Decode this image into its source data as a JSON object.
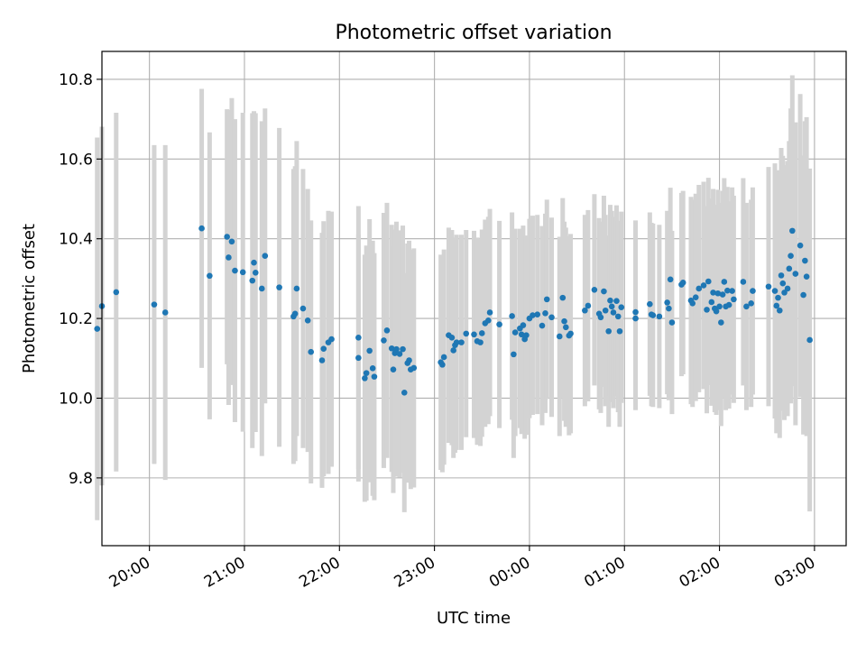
{
  "chart_data": {
    "type": "scatter",
    "title": "Photometric offset variation",
    "xlabel": "UTC time",
    "ylabel": "Photometric offset",
    "x_axis": {
      "type": "time",
      "range": [
        "19:30",
        "03:20"
      ],
      "ticks": [
        "20:00",
        "21:00",
        "22:00",
        "23:00",
        "00:00",
        "01:00",
        "02:00",
        "03:00"
      ]
    },
    "y_axis": {
      "range": [
        9.63,
        10.87
      ],
      "ticks": [
        "9.8",
        "10.0",
        "10.2",
        "10.4",
        "10.6",
        "10.8"
      ]
    },
    "grid": true,
    "colors": {
      "points": "#1f77b4",
      "errorbars": "#d3d3d3",
      "grid": "#b0b0b0"
    },
    "series": [
      {
        "points": [
          {
            "t": "19:27",
            "y": 10.174,
            "err": 0.48
          },
          {
            "t": "19:30",
            "y": 10.231,
            "err": 0.45
          },
          {
            "t": "19:39",
            "y": 10.266,
            "err": 0.45
          },
          {
            "t": "20:03",
            "y": 10.235,
            "err": 0.4
          },
          {
            "t": "20:10",
            "y": 10.215,
            "err": 0.42
          },
          {
            "t": "20:33",
            "y": 10.426,
            "err": 0.35
          },
          {
            "t": "20:38",
            "y": 10.307,
            "err": 0.36
          },
          {
            "t": "20:49",
            "y": 10.405,
            "err": 0.32
          },
          {
            "t": "20:50",
            "y": 10.353,
            "err": 0.37
          },
          {
            "t": "20:52",
            "y": 10.393,
            "err": 0.36
          },
          {
            "t": "20:54",
            "y": 10.32,
            "err": 0.38
          },
          {
            "t": "20:59",
            "y": 10.316,
            "err": 0.4
          },
          {
            "t": "21:05",
            "y": 10.295,
            "err": 0.42
          },
          {
            "t": "21:06",
            "y": 10.34,
            "err": 0.38
          },
          {
            "t": "21:07",
            "y": 10.315,
            "err": 0.4
          },
          {
            "t": "21:11",
            "y": 10.275,
            "err": 0.42
          },
          {
            "t": "21:13",
            "y": 10.357,
            "err": 0.37
          },
          {
            "t": "21:22",
            "y": 10.278,
            "err": 0.4
          },
          {
            "t": "21:31",
            "y": 10.205,
            "err": 0.37
          },
          {
            "t": "21:32",
            "y": 10.212,
            "err": 0.37
          },
          {
            "t": "21:33",
            "y": 10.275,
            "err": 0.37
          },
          {
            "t": "21:37",
            "y": 10.225,
            "err": 0.35
          },
          {
            "t": "21:40",
            "y": 10.195,
            "err": 0.33
          },
          {
            "t": "21:42",
            "y": 10.116,
            "err": 0.33
          },
          {
            "t": "21:49",
            "y": 10.095,
            "err": 0.32
          },
          {
            "t": "21:50",
            "y": 10.124,
            "err": 0.32
          },
          {
            "t": "21:53",
            "y": 10.14,
            "err": 0.33
          },
          {
            "t": "21:55",
            "y": 10.148,
            "err": 0.32
          },
          {
            "t": "22:12",
            "y": 10.152,
            "err": 0.33
          },
          {
            "t": "22:12",
            "y": 10.101,
            "err": 0.31
          },
          {
            "t": "22:16",
            "y": 10.05,
            "err": 0.31
          },
          {
            "t": "22:17",
            "y": 10.063,
            "err": 0.32
          },
          {
            "t": "22:19",
            "y": 10.119,
            "err": 0.33
          },
          {
            "t": "22:22",
            "y": 10.054,
            "err": 0.31
          },
          {
            "t": "22:21",
            "y": 10.075,
            "err": 0.32
          },
          {
            "t": "22:28",
            "y": 10.145,
            "err": 0.32
          },
          {
            "t": "22:30",
            "y": 10.17,
            "err": 0.32
          },
          {
            "t": "22:33",
            "y": 10.125,
            "err": 0.31
          },
          {
            "t": "22:34",
            "y": 10.072,
            "err": 0.31
          },
          {
            "t": "22:35",
            "y": 10.113,
            "err": 0.31
          },
          {
            "t": "22:36",
            "y": 10.123,
            "err": 0.32
          },
          {
            "t": "22:38",
            "y": 10.111,
            "err": 0.31
          },
          {
            "t": "22:40",
            "y": 10.123,
            "err": 0.31
          },
          {
            "t": "22:41",
            "y": 10.014,
            "err": 0.3
          },
          {
            "t": "22:43",
            "y": 10.088,
            "err": 0.3
          },
          {
            "t": "22:44",
            "y": 10.095,
            "err": 0.3
          },
          {
            "t": "22:45",
            "y": 10.072,
            "err": 0.3
          },
          {
            "t": "22:47",
            "y": 10.076,
            "err": 0.3
          },
          {
            "t": "23:04",
            "y": 10.09,
            "err": 0.27
          },
          {
            "t": "23:05",
            "y": 10.084,
            "err": 0.27
          },
          {
            "t": "23:06",
            "y": 10.103,
            "err": 0.27
          },
          {
            "t": "23:09",
            "y": 10.158,
            "err": 0.27
          },
          {
            "t": "23:11",
            "y": 10.152,
            "err": 0.27
          },
          {
            "t": "23:12",
            "y": 10.12,
            "err": 0.27
          },
          {
            "t": "23:13",
            "y": 10.133,
            "err": 0.27
          },
          {
            "t": "23:14",
            "y": 10.14,
            "err": 0.27
          },
          {
            "t": "23:17",
            "y": 10.14,
            "err": 0.27
          },
          {
            "t": "23:20",
            "y": 10.162,
            "err": 0.26
          },
          {
            "t": "23:25",
            "y": 10.16,
            "err": 0.26
          },
          {
            "t": "23:27",
            "y": 10.143,
            "err": 0.26
          },
          {
            "t": "23:29",
            "y": 10.14,
            "err": 0.26
          },
          {
            "t": "23:30",
            "y": 10.163,
            "err": 0.26
          },
          {
            "t": "23:32",
            "y": 10.188,
            "err": 0.26
          },
          {
            "t": "23:34",
            "y": 10.195,
            "err": 0.26
          },
          {
            "t": "23:35",
            "y": 10.215,
            "err": 0.26
          },
          {
            "t": "23:41",
            "y": 10.185,
            "err": 0.26
          },
          {
            "t": "23:49",
            "y": 10.206,
            "err": 0.26
          },
          {
            "t": "23:50",
            "y": 10.11,
            "err": 0.26
          },
          {
            "t": "23:51",
            "y": 10.165,
            "err": 0.26
          },
          {
            "t": "23:54",
            "y": 10.175,
            "err": 0.25
          },
          {
            "t": "23:55",
            "y": 10.16,
            "err": 0.25
          },
          {
            "t": "23:56",
            "y": 10.183,
            "err": 0.25
          },
          {
            "t": "23:57",
            "y": 10.148,
            "err": 0.25
          },
          {
            "t": "23:58",
            "y": 10.158,
            "err": 0.25
          },
          {
            "t": "00:00",
            "y": 10.2,
            "err": 0.25
          },
          {
            "t": "00:02",
            "y": 10.208,
            "err": 0.25
          },
          {
            "t": "00:05",
            "y": 10.21,
            "err": 0.25
          },
          {
            "t": "00:08",
            "y": 10.182,
            "err": 0.25
          },
          {
            "t": "00:10",
            "y": 10.213,
            "err": 0.25
          },
          {
            "t": "00:11",
            "y": 10.248,
            "err": 0.25
          },
          {
            "t": "00:14",
            "y": 10.203,
            "err": 0.25
          },
          {
            "t": "00:19",
            "y": 10.155,
            "err": 0.25
          },
          {
            "t": "00:21",
            "y": 10.252,
            "err": 0.25
          },
          {
            "t": "00:22",
            "y": 10.193,
            "err": 0.25
          },
          {
            "t": "00:23",
            "y": 10.178,
            "err": 0.25
          },
          {
            "t": "00:25",
            "y": 10.157,
            "err": 0.25
          },
          {
            "t": "00:26",
            "y": 10.162,
            "err": 0.25
          },
          {
            "t": "00:35",
            "y": 10.22,
            "err": 0.24
          },
          {
            "t": "00:37",
            "y": 10.232,
            "err": 0.24
          },
          {
            "t": "00:41",
            "y": 10.272,
            "err": 0.24
          },
          {
            "t": "00:44",
            "y": 10.212,
            "err": 0.24
          },
          {
            "t": "00:45",
            "y": 10.203,
            "err": 0.24
          },
          {
            "t": "00:47",
            "y": 10.268,
            "err": 0.24
          },
          {
            "t": "00:48",
            "y": 10.22,
            "err": 0.24
          },
          {
            "t": "00:50",
            "y": 10.168,
            "err": 0.24
          },
          {
            "t": "00:51",
            "y": 10.245,
            "err": 0.24
          },
          {
            "t": "00:52",
            "y": 10.23,
            "err": 0.24
          },
          {
            "t": "00:53",
            "y": 10.215,
            "err": 0.24
          },
          {
            "t": "00:55",
            "y": 10.244,
            "err": 0.24
          },
          {
            "t": "00:56",
            "y": 10.205,
            "err": 0.24
          },
          {
            "t": "00:57",
            "y": 10.168,
            "err": 0.24
          },
          {
            "t": "00:58",
            "y": 10.228,
            "err": 0.24
          },
          {
            "t": "01:07",
            "y": 10.216,
            "err": 0.23
          },
          {
            "t": "01:07",
            "y": 10.2,
            "err": 0.23
          },
          {
            "t": "01:16",
            "y": 10.236,
            "err": 0.23
          },
          {
            "t": "01:17",
            "y": 10.21,
            "err": 0.23
          },
          {
            "t": "01:18",
            "y": 10.208,
            "err": 0.23
          },
          {
            "t": "01:22",
            "y": 10.205,
            "err": 0.23
          },
          {
            "t": "01:27",
            "y": 10.24,
            "err": 0.23
          },
          {
            "t": "01:28",
            "y": 10.225,
            "err": 0.23
          },
          {
            "t": "01:29",
            "y": 10.298,
            "err": 0.23
          },
          {
            "t": "01:30",
            "y": 10.19,
            "err": 0.23
          },
          {
            "t": "01:36",
            "y": 10.285,
            "err": 0.23
          },
          {
            "t": "01:37",
            "y": 10.29,
            "err": 0.23
          },
          {
            "t": "01:42",
            "y": 10.245,
            "err": 0.26
          },
          {
            "t": "01:43",
            "y": 10.238,
            "err": 0.26
          },
          {
            "t": "01:45",
            "y": 10.253,
            "err": 0.26
          },
          {
            "t": "01:47",
            "y": 10.275,
            "err": 0.26
          },
          {
            "t": "01:50",
            "y": 10.283,
            "err": 0.26
          },
          {
            "t": "01:52",
            "y": 10.222,
            "err": 0.26
          },
          {
            "t": "01:53",
            "y": 10.293,
            "err": 0.26
          },
          {
            "t": "01:55",
            "y": 10.241,
            "err": 0.26
          },
          {
            "t": "01:56",
            "y": 10.265,
            "err": 0.26
          },
          {
            "t": "01:57",
            "y": 10.225,
            "err": 0.26
          },
          {
            "t": "01:58",
            "y": 10.218,
            "err": 0.26
          },
          {
            "t": "01:59",
            "y": 10.263,
            "err": 0.26
          },
          {
            "t": "02:00",
            "y": 10.23,
            "err": 0.26
          },
          {
            "t": "02:01",
            "y": 10.19,
            "err": 0.26
          },
          {
            "t": "02:02",
            "y": 10.26,
            "err": 0.26
          },
          {
            "t": "02:03",
            "y": 10.292,
            "err": 0.26
          },
          {
            "t": "02:04",
            "y": 10.23,
            "err": 0.26
          },
          {
            "t": "02:05",
            "y": 10.27,
            "err": 0.26
          },
          {
            "t": "02:06",
            "y": 10.234,
            "err": 0.26
          },
          {
            "t": "02:08",
            "y": 10.269,
            "err": 0.26
          },
          {
            "t": "02:09",
            "y": 10.248,
            "err": 0.26
          },
          {
            "t": "02:15",
            "y": 10.292,
            "err": 0.26
          },
          {
            "t": "02:17",
            "y": 10.23,
            "err": 0.26
          },
          {
            "t": "02:20",
            "y": 10.238,
            "err": 0.26
          },
          {
            "t": "02:21",
            "y": 10.269,
            "err": 0.26
          },
          {
            "t": "02:31",
            "y": 10.28,
            "err": 0.3
          },
          {
            "t": "02:35",
            "y": 10.269,
            "err": 0.32
          },
          {
            "t": "02:36",
            "y": 10.232,
            "err": 0.32
          },
          {
            "t": "02:37",
            "y": 10.252,
            "err": 0.32
          },
          {
            "t": "02:38",
            "y": 10.22,
            "err": 0.32
          },
          {
            "t": "02:39",
            "y": 10.308,
            "err": 0.32
          },
          {
            "t": "02:40",
            "y": 10.288,
            "err": 0.32
          },
          {
            "t": "02:41",
            "y": 10.265,
            "err": 0.32
          },
          {
            "t": "02:43",
            "y": 10.275,
            "err": 0.32
          },
          {
            "t": "02:44",
            "y": 10.325,
            "err": 0.32
          },
          {
            "t": "02:45",
            "y": 10.357,
            "err": 0.37
          },
          {
            "t": "02:46",
            "y": 10.42,
            "err": 0.39
          },
          {
            "t": "02:48",
            "y": 10.312,
            "err": 0.38
          },
          {
            "t": "02:51",
            "y": 10.383,
            "err": 0.38
          },
          {
            "t": "02:53",
            "y": 10.259,
            "err": 0.35
          },
          {
            "t": "02:54",
            "y": 10.345,
            "err": 0.35
          },
          {
            "t": "02:55",
            "y": 10.305,
            "err": 0.4
          },
          {
            "t": "02:57",
            "y": 10.146,
            "err": 0.43
          }
        ]
      }
    ]
  }
}
